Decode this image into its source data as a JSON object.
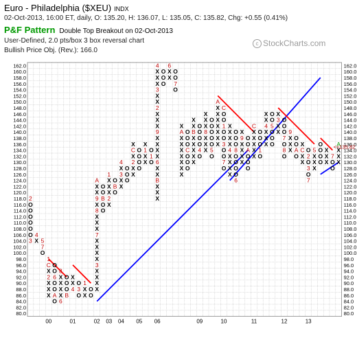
{
  "header": {
    "title": "Euro - Philadelphia ($XEU)",
    "exchange": "INDX",
    "quote": "02-Oct-2013, 16:00 ET, daily, O: 135.20, H: 136.07, L: 135.05, C: 135.82, Chg: +0.55 (0.41%)",
    "pattern_label": "P&F Pattern",
    "pattern_signal": "Double Top Breakout on 02-Oct-2013",
    "params": "User-Defined, 2.0 pts/box 3 box reversal chart",
    "bullish_obj": "Bullish Price Obj. (Rev.): 166.0"
  },
  "credit": "StockCharts.com",
  "colors": {
    "x": "#000000",
    "o": "#000000",
    "month": "#c00000",
    "resistance": "#ff0000",
    "support": "#0000ff",
    "grid": "#bbbbbb",
    "last": "#009900",
    "price_tag": "#aa0000"
  },
  "chart_data": {
    "type": "point-and-figure",
    "box_size": 2,
    "reversal": 3,
    "ylim": [
      80,
      162
    ],
    "y_ticks": [
      "162.0",
      "160.0",
      "158.0",
      "156.0",
      "154.0",
      "152.0",
      "150.0",
      "148.0",
      "146.0",
      "144.0",
      "142.0",
      "140.0",
      "138.0",
      "136.0",
      "134.0",
      "132.0",
      "130.0",
      "128.0",
      "126.0",
      "124.0",
      "122.0",
      "120.0",
      "118.0",
      "116.0",
      "114.0",
      "112.0",
      "110.0",
      "108.0",
      "106.0",
      "104.0",
      "102.0",
      "100.0",
      "98.0",
      "96.0",
      "94.0",
      "92.0",
      "90.0",
      "88.0",
      "86.0",
      "84.0",
      "82.0",
      "80.0"
    ],
    "last_price_label": "<<135.82",
    "x_labels": [
      {
        "label": "00",
        "col": 3
      },
      {
        "label": "01",
        "col": 7
      },
      {
        "label": "02",
        "col": 11
      },
      {
        "label": "03",
        "col": 13
      },
      {
        "label": "04",
        "col": 15
      },
      {
        "label": "05",
        "col": 18
      },
      {
        "label": "06",
        "col": 21
      },
      {
        "label": "09",
        "col": 28
      },
      {
        "label": "10",
        "col": 32
      },
      {
        "label": "11",
        "col": 37
      },
      {
        "label": "12",
        "col": 42
      },
      {
        "label": "13",
        "col": 46
      }
    ],
    "columns": [
      {
        "t": "O",
        "hi": 118,
        "lo": 104,
        "m": {
          "118": "2",
          "104": "3"
        }
      },
      {
        "t": "X",
        "hi": 106,
        "lo": 104,
        "m": {
          "106": "4"
        }
      },
      {
        "t": "O",
        "hi": 104,
        "lo": 100,
        "m": {
          "104": "5",
          "102": "7"
        }
      },
      {
        "t": "X",
        "hi": 98,
        "lo": 86,
        "m": {
          "92": "2",
          "96": "C",
          "98": "1"
        }
      },
      {
        "t": "O",
        "hi": 96,
        "lo": 84,
        "m": {
          "92": "6",
          "86": "A"
        }
      },
      {
        "t": "X",
        "hi": 94,
        "lo": 84,
        "m": {
          "94": "8",
          "84": "6"
        }
      },
      {
        "t": "O",
        "hi": 92,
        "lo": 86,
        "m": {
          "86": "B"
        }
      },
      {
        "t": "X",
        "hi": 92,
        "lo": 88,
        "m": {
          "88": "4"
        }
      },
      {
        "t": "O",
        "hi": 90,
        "lo": 86,
        "m": {
          "88": "3"
        }
      },
      {
        "t": "X",
        "hi": 90,
        "lo": 86,
        "m": {
          "90": "1"
        }
      },
      {
        "t": "O",
        "hi": 88,
        "lo": 86,
        "m": {}
      },
      {
        "t": "X",
        "hi": 124,
        "lo": 88,
        "m": {
          "96": "3",
          "106": "7",
          "114": "8",
          "118": "9",
          "124": "A"
        }
      },
      {
        "t": "O",
        "hi": 122,
        "lo": 114,
        "m": {
          "118": "B"
        }
      },
      {
        "t": "X",
        "hi": 126,
        "lo": 116,
        "m": {
          "118": "2",
          "126": "1"
        }
      },
      {
        "t": "O",
        "hi": 124,
        "lo": 120,
        "m": {
          "122": "B"
        }
      },
      {
        "t": "X",
        "hi": 130,
        "lo": 122,
        "m": {
          "126": "3",
          "130": "4"
        }
      },
      {
        "t": "O",
        "hi": 128,
        "lo": 124,
        "m": {}
      },
      {
        "t": "X",
        "hi": 136,
        "lo": 126,
        "m": {
          "130": "2",
          "134": "C"
        }
      },
      {
        "t": "O",
        "hi": 134,
        "lo": 128,
        "m": {}
      },
      {
        "t": "X",
        "hi": 136,
        "lo": 130,
        "m": {
          "134": "1"
        }
      },
      {
        "t": "O",
        "hi": 134,
        "lo": 130,
        "m": {
          "132": "1"
        }
      },
      {
        "t": "X",
        "hi": 162,
        "lo": 118,
        "m": {
          "124": "B",
          "130": "6",
          "140": "9",
          "148": "2",
          "154": "3",
          "162": "4"
        }
      },
      {
        "t": "O",
        "hi": 160,
        "lo": 156,
        "m": {}
      },
      {
        "t": "X",
        "hi": 162,
        "lo": 158,
        "m": {
          "162": "6"
        }
      },
      {
        "t": "O",
        "hi": 160,
        "lo": 154,
        "m": {
          "156": "7"
        }
      },
      {
        "t": "X",
        "hi": 142,
        "lo": 126,
        "m": {
          "140": "A"
        }
      },
      {
        "t": "O",
        "hi": 140,
        "lo": 128,
        "m": {
          "134": "C"
        }
      },
      {
        "t": "X",
        "hi": 144,
        "lo": 130,
        "m": {
          "140": "B"
        }
      },
      {
        "t": "O",
        "hi": 142,
        "lo": 132,
        "m": {
          "134": "4"
        }
      },
      {
        "t": "X",
        "hi": 146,
        "lo": 134,
        "m": {
          "140": "8"
        }
      },
      {
        "t": "O",
        "hi": 144,
        "lo": 132,
        "m": {
          "134": "5"
        }
      },
      {
        "t": "X",
        "hi": 150,
        "lo": 136,
        "m": {
          "150": "A"
        }
      },
      {
        "t": "O",
        "hi": 148,
        "lo": 128,
        "m": {
          "148": "C",
          "142": "1",
          "136": "3",
          "130": "7"
        }
      },
      {
        "t": "X",
        "hi": 142,
        "lo": 126,
        "m": {
          "134": "4"
        }
      },
      {
        "t": "O",
        "hi": 140,
        "lo": 124,
        "m": {
          "134": "8",
          "124": "6"
        }
      },
      {
        "t": "X",
        "hi": 140,
        "lo": 130,
        "m": {
          "138": "9"
        }
      },
      {
        "t": "O",
        "hi": 138,
        "lo": 128,
        "m": {
          "134": "A"
        }
      },
      {
        "t": "X",
        "hi": 142,
        "lo": 132,
        "m": {
          "142": "C"
        }
      },
      {
        "t": "O",
        "hi": 140,
        "lo": 132,
        "m": {
          "134": "1"
        }
      },
      {
        "t": "X",
        "hi": 146,
        "lo": 136,
        "m": {
          "142": "4"
        }
      },
      {
        "t": "O",
        "hi": 146,
        "lo": 136,
        "m": {
          "142": "5"
        }
      },
      {
        "t": "X",
        "hi": 146,
        "lo": 140,
        "m": {
          "144": "3"
        }
      },
      {
        "t": "O",
        "hi": 144,
        "lo": 132,
        "m": {
          "138": "7",
          "134": "8"
        }
      },
      {
        "t": "X",
        "hi": 140,
        "lo": 134,
        "m": {
          "140": "9"
        }
      },
      {
        "t": "O",
        "hi": 138,
        "lo": 132,
        "m": {
          "134": "A"
        }
      },
      {
        "t": "X",
        "hi": 136,
        "lo": 130,
        "m": {
          "134": "C"
        }
      },
      {
        "t": "O",
        "hi": 134,
        "lo": 124,
        "m": {
          "132": "2",
          "128": "3",
          "124": "7"
        }
      },
      {
        "t": "X",
        "hi": 134,
        "lo": 128,
        "m": {
          "134": "5"
        }
      },
      {
        "t": "O",
        "hi": 136,
        "lo": 130,
        "m": {}
      },
      {
        "t": "X",
        "hi": 134,
        "lo": 130,
        "m": {}
      },
      {
        "t": "O",
        "hi": 132,
        "lo": 128,
        "m": {
          "132": "7"
        }
      },
      {
        "t": "X",
        "hi": 136,
        "lo": 130,
        "m": {
          "136": "A"
        }
      }
    ],
    "trend_lines": [
      {
        "kind": "support",
        "x1": 11,
        "y1": 84,
        "x2": 36,
        "y2": 134
      },
      {
        "kind": "support",
        "x1": 33,
        "y1": 124,
        "x2": 48,
        "y2": 158
      },
      {
        "kind": "resistance",
        "x1": 3,
        "y1": 98,
        "x2": 6,
        "y2": 92
      },
      {
        "kind": "resistance",
        "x1": 7,
        "y1": 96,
        "x2": 10,
        "y2": 90
      },
      {
        "kind": "resistance",
        "x1": 31,
        "y1": 152,
        "x2": 37,
        "y2": 140
      },
      {
        "kind": "resistance",
        "x1": 41,
        "y1": 148,
        "x2": 47,
        "y2": 136
      },
      {
        "kind": "resistance",
        "x1": 48,
        "y1": 138,
        "x2": 50,
        "y2": 134
      },
      {
        "kind": "support",
        "x1": 48,
        "y1": 126,
        "x2": 51,
        "y2": 130
      }
    ]
  }
}
